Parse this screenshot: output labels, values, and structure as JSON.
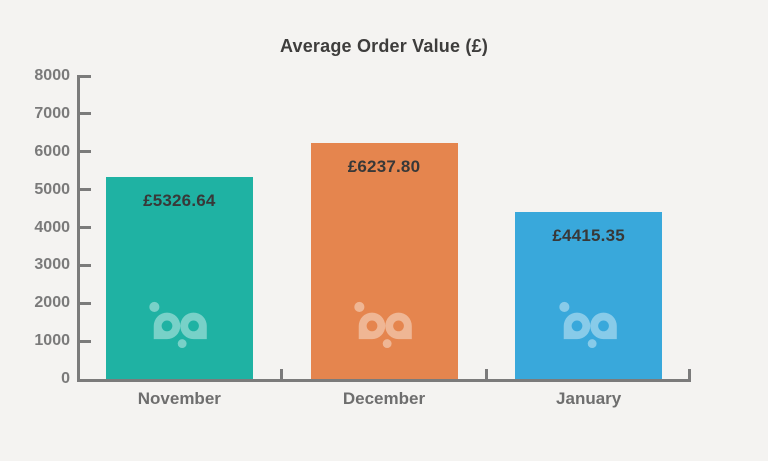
{
  "chart_data": {
    "type": "bar",
    "title": "Average Order Value (£)",
    "categories": [
      "November",
      "December",
      "January"
    ],
    "values": [
      5326.64,
      6237.8,
      4415.35
    ],
    "value_labels": [
      "£5326.64",
      "£6237.80",
      "£4415.35"
    ],
    "bar_colors": [
      "#1fb2a3",
      "#e5854e",
      "#39a8db"
    ],
    "ylim": [
      0,
      8000
    ],
    "y_ticks": [
      0,
      1000,
      2000,
      3000,
      4000,
      5000,
      6000,
      7000,
      8000
    ],
    "y_tick_labels": [
      "0",
      "1000",
      "2000",
      "3000",
      "4000",
      "5000",
      "6000",
      "7000",
      "8000"
    ],
    "xlabel": "",
    "ylabel": "",
    "grid": false,
    "legend": "none",
    "axis_color": "#7b7b7b",
    "background_color": "#f4f3f1",
    "title_color": "#3e3d3c",
    "value_label_color": "#383838",
    "tick_label_color": "#7a7a7a",
    "category_label_color": "#6e6e6e",
    "watermark_icon": "bp-logo",
    "watermark_opacity": 0.4
  }
}
